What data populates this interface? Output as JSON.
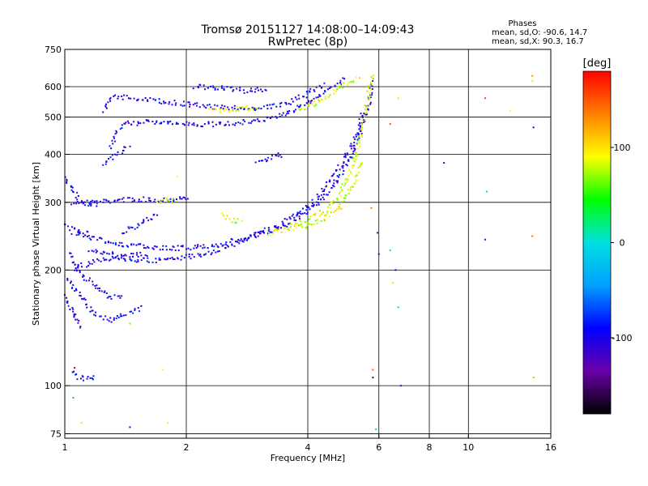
{
  "chart_data": {
    "type": "scatter",
    "title": "Tromsø 20151127 14:08:00–14:09:43",
    "subtitle": "RwPretec (8p)",
    "xlabel": "Frequency [MHz]",
    "ylabel": "Stationary phase Virtual Height [km]",
    "x_scale": "log",
    "y_scale": "log",
    "xlim": [
      1,
      16
    ],
    "ylim": [
      73,
      750
    ],
    "x_ticks": [
      1,
      2,
      4,
      6,
      8,
      10,
      16
    ],
    "y_ticks": [
      75,
      100,
      200,
      300,
      400,
      500,
      600,
      750
    ],
    "grid": true,
    "stats": {
      "title": "Phases",
      "o_line": "mean, sd,O: -90.6, 14.7",
      "x_line": "mean, sd,X:  90.3, 16.7"
    },
    "colorbar": {
      "label": "[deg]",
      "range": [
        -180,
        180
      ],
      "ticks": [
        100,
        0,
        -100
      ],
      "colors": [
        "#000000",
        "#6a00a8",
        "#0000ff",
        "#00a0ff",
        "#00e0e0",
        "#00ff00",
        "#ffff00",
        "#ff8000",
        "#ff0000"
      ],
      "placement": "right"
    },
    "series": [
      {
        "phase_deg": -100,
        "traces": [
          [
            [
              1.05,
              300
            ],
            [
              1.2,
              300
            ],
            [
              1.4,
              305
            ],
            [
              1.6,
              305
            ],
            [
              1.8,
              305
            ],
            [
              2.05,
              308
            ]
          ],
          [
            [
              1.05,
              250
            ],
            [
              1.1,
              248
            ],
            [
              1.15,
              245
            ],
            [
              1.2,
              240
            ],
            [
              1.3,
              236
            ],
            [
              1.45,
              232
            ],
            [
              1.65,
              228
            ],
            [
              1.9,
              228
            ],
            [
              2.2,
              230
            ],
            [
              2.5,
              235
            ],
            [
              2.8,
              242
            ],
            [
              3.2,
              252
            ],
            [
              3.6,
              265
            ],
            [
              4.0,
              285
            ],
            [
              4.4,
              310
            ],
            [
              4.8,
              350
            ],
            [
              5.2,
              410
            ],
            [
              5.5,
              480
            ],
            [
              5.7,
              560
            ],
            [
              5.8,
              620
            ]
          ],
          [
            [
              1.05,
              200
            ],
            [
              1.1,
              205
            ],
            [
              1.2,
              210
            ],
            [
              1.3,
              215
            ],
            [
              1.45,
              218
            ],
            [
              1.6,
              220
            ]
          ],
          [
            [
              1.15,
              225
            ],
            [
              1.3,
              220
            ],
            [
              1.4,
              215
            ],
            [
              1.5,
              212
            ],
            [
              1.65,
              212
            ],
            [
              1.9,
              214
            ],
            [
              2.2,
              220
            ],
            [
              2.6,
              232
            ],
            [
              3.0,
              248
            ],
            [
              3.4,
              262
            ],
            [
              3.8,
              282
            ],
            [
              4.2,
              305
            ],
            [
              4.6,
              345
            ],
            [
              5.0,
              400
            ],
            [
              5.3,
              450
            ],
            [
              5.5,
              520
            ]
          ],
          [
            [
              1.02,
              190
            ],
            [
              1.05,
              180
            ],
            [
              1.1,
              170
            ],
            [
              1.15,
              160
            ],
            [
              1.2,
              152
            ],
            [
              1.3,
              148
            ],
            [
              1.4,
              152
            ],
            [
              1.55,
              160
            ]
          ],
          [
            [
              1.02,
              220
            ],
            [
              1.05,
              210
            ],
            [
              1.1,
              195
            ],
            [
              1.2,
              180
            ],
            [
              1.3,
              170
            ],
            [
              1.4,
              172
            ]
          ],
          [
            [
              1.0,
              350
            ],
            [
              1.05,
              320
            ],
            [
              1.1,
              300
            ],
            [
              1.2,
              295
            ]
          ],
          [
            [
              1.0,
              170
            ],
            [
              1.03,
              160
            ],
            [
              1.06,
              150
            ],
            [
              1.1,
              140
            ]
          ],
          [
            [
              1.0,
              260
            ],
            [
              1.05,
              255
            ],
            [
              1.1,
              250
            ],
            [
              1.15,
              248
            ]
          ],
          [
            [
              1.05,
              110
            ],
            [
              1.08,
              105
            ],
            [
              1.12,
              104
            ],
            [
              1.2,
              106
            ]
          ],
          [
            [
              1.3,
              420
            ],
            [
              1.35,
              460
            ],
            [
              1.4,
              480
            ],
            [
              1.6,
              485
            ],
            [
              1.9,
              480
            ],
            [
              2.2,
              478
            ],
            [
              2.6,
              482
            ],
            [
              3.0,
              490
            ],
            [
              3.4,
              505
            ],
            [
              3.8,
              530
            ],
            [
              4.2,
              560
            ],
            [
              4.6,
              600
            ],
            [
              5.0,
              630
            ]
          ],
          [
            [
              1.25,
              520
            ],
            [
              1.3,
              555
            ],
            [
              1.35,
              565
            ],
            [
              1.5,
              560
            ],
            [
              1.7,
              550
            ],
            [
              2.0,
              540
            ],
            [
              2.4,
              530
            ],
            [
              2.8,
              525
            ],
            [
              3.2,
              530
            ],
            [
              3.6,
              545
            ],
            [
              4.0,
              575
            ],
            [
              4.4,
              610
            ]
          ],
          [
            [
              1.25,
              380
            ],
            [
              1.35,
              400
            ],
            [
              1.45,
              420
            ]
          ],
          [
            [
              1.4,
              250
            ],
            [
              1.5,
              260
            ],
            [
              1.6,
              270
            ],
            [
              1.7,
              280
            ]
          ],
          [
            [
              3.0,
              380
            ],
            [
              3.2,
              390
            ],
            [
              3.4,
              400
            ],
            [
              3.5,
              390
            ]
          ],
          [
            [
              2.1,
              600
            ],
            [
              2.4,
              595
            ],
            [
              2.8,
              585
            ],
            [
              3.2,
              590
            ]
          ]
        ]
      },
      {
        "phase_deg": 85,
        "traces": [
          [
            [
              3.6,
              260
            ],
            [
              4.0,
              268
            ],
            [
              4.4,
              285
            ],
            [
              4.8,
              315
            ],
            [
              5.1,
              360
            ],
            [
              5.3,
              410
            ],
            [
              5.45,
              470
            ],
            [
              5.6,
              540
            ],
            [
              5.7,
              600
            ],
            [
              5.8,
              650
            ]
          ],
          [
            [
              3.2,
              250
            ],
            [
              3.6,
              255
            ],
            [
              4.0,
              262
            ],
            [
              4.4,
              272
            ],
            [
              4.8,
              292
            ],
            [
              5.2,
              335
            ],
            [
              5.5,
              390
            ]
          ],
          [
            [
              2.45,
              280
            ],
            [
              2.55,
              270
            ],
            [
              2.65,
              268
            ],
            [
              2.75,
              270
            ]
          ],
          [
            [
              3.8,
              520
            ],
            [
              4.2,
              545
            ],
            [
              4.6,
              580
            ],
            [
              5.0,
              610
            ],
            [
              5.4,
              630
            ]
          ],
          [
            [
              1.7,
              300
            ],
            [
              1.8,
              305
            ],
            [
              1.9,
              303
            ]
          ],
          [
            [
              2.3,
              520
            ],
            [
              2.6,
              525
            ],
            [
              3.0,
              530
            ]
          ]
        ]
      }
    ],
    "isolated_points": [
      {
        "x": 5.75,
        "y": 290,
        "phase_deg": 140
      },
      {
        "x": 5.95,
        "y": 250,
        "phase_deg": -120
      },
      {
        "x": 6.4,
        "y": 225,
        "phase_deg": 15
      },
      {
        "x": 6.6,
        "y": 200,
        "phase_deg": -110
      },
      {
        "x": 6.5,
        "y": 185,
        "phase_deg": 80
      },
      {
        "x": 6.7,
        "y": 160,
        "phase_deg": 40
      },
      {
        "x": 5.8,
        "y": 110,
        "phase_deg": 150
      },
      {
        "x": 5.8,
        "y": 105,
        "phase_deg": -150
      },
      {
        "x": 5.9,
        "y": 77,
        "phase_deg": 15
      },
      {
        "x": 6.8,
        "y": 100,
        "phase_deg": -110
      },
      {
        "x": 6.0,
        "y": 220,
        "phase_deg": -100
      },
      {
        "x": 8.7,
        "y": 380,
        "phase_deg": -110
      },
      {
        "x": 11.0,
        "y": 560,
        "phase_deg": 160
      },
      {
        "x": 11.1,
        "y": 320,
        "phase_deg": 20
      },
      {
        "x": 11.0,
        "y": 240,
        "phase_deg": -120
      },
      {
        "x": 12.7,
        "y": 520,
        "phase_deg": 90
      },
      {
        "x": 14.4,
        "y": 640,
        "phase_deg": 130
      },
      {
        "x": 14.4,
        "y": 620,
        "phase_deg": 80
      },
      {
        "x": 14.5,
        "y": 470,
        "phase_deg": -100
      },
      {
        "x": 14.4,
        "y": 245,
        "phase_deg": 140
      },
      {
        "x": 14.5,
        "y": 105,
        "phase_deg": 120
      },
      {
        "x": 6.4,
        "y": 480,
        "phase_deg": 150
      },
      {
        "x": 6.7,
        "y": 560,
        "phase_deg": 80
      },
      {
        "x": 1.05,
        "y": 93,
        "phase_deg": -40
      },
      {
        "x": 1.1,
        "y": 80,
        "phase_deg": 100
      },
      {
        "x": 1.45,
        "y": 78,
        "phase_deg": -110
      },
      {
        "x": 1.8,
        "y": 80,
        "phase_deg": 100
      },
      {
        "x": 1.75,
        "y": 110,
        "phase_deg": 90
      },
      {
        "x": 1.45,
        "y": 145,
        "phase_deg": 60
      },
      {
        "x": 1.9,
        "y": 350,
        "phase_deg": 90
      }
    ]
  }
}
